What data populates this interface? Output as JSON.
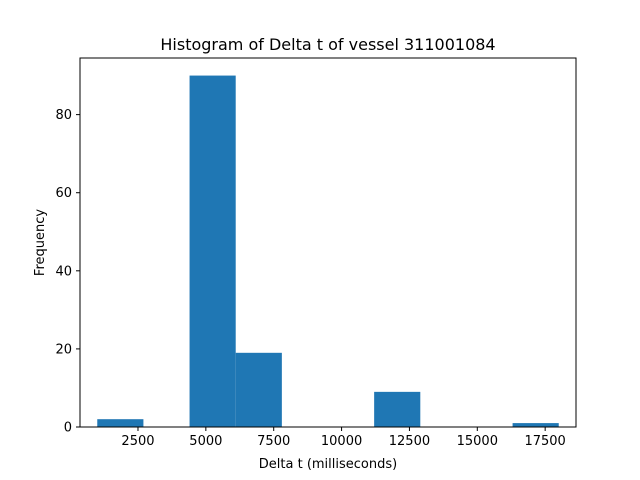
{
  "chart_data": {
    "type": "bar",
    "title": "Histogram of Delta t of vessel 311001084",
    "xlabel": "Delta t (milliseconds)",
    "ylabel": "Frequency",
    "bin_edges": [
      1000,
      2700,
      4400,
      6100,
      7800,
      9500,
      11200,
      12900,
      14600,
      16300,
      18000
    ],
    "values": [
      2,
      0,
      90,
      19,
      0,
      0,
      9,
      0,
      0,
      1
    ],
    "xlim": [
      364,
      18636
    ],
    "ylim": [
      0,
      94.5
    ],
    "xticks": [
      2500,
      5000,
      7500,
      10000,
      12500,
      15000,
      17500
    ],
    "yticks": [
      0,
      20,
      40,
      60,
      80
    ],
    "bar_color": "#1f77b4",
    "grid": false,
    "legend": "none"
  }
}
